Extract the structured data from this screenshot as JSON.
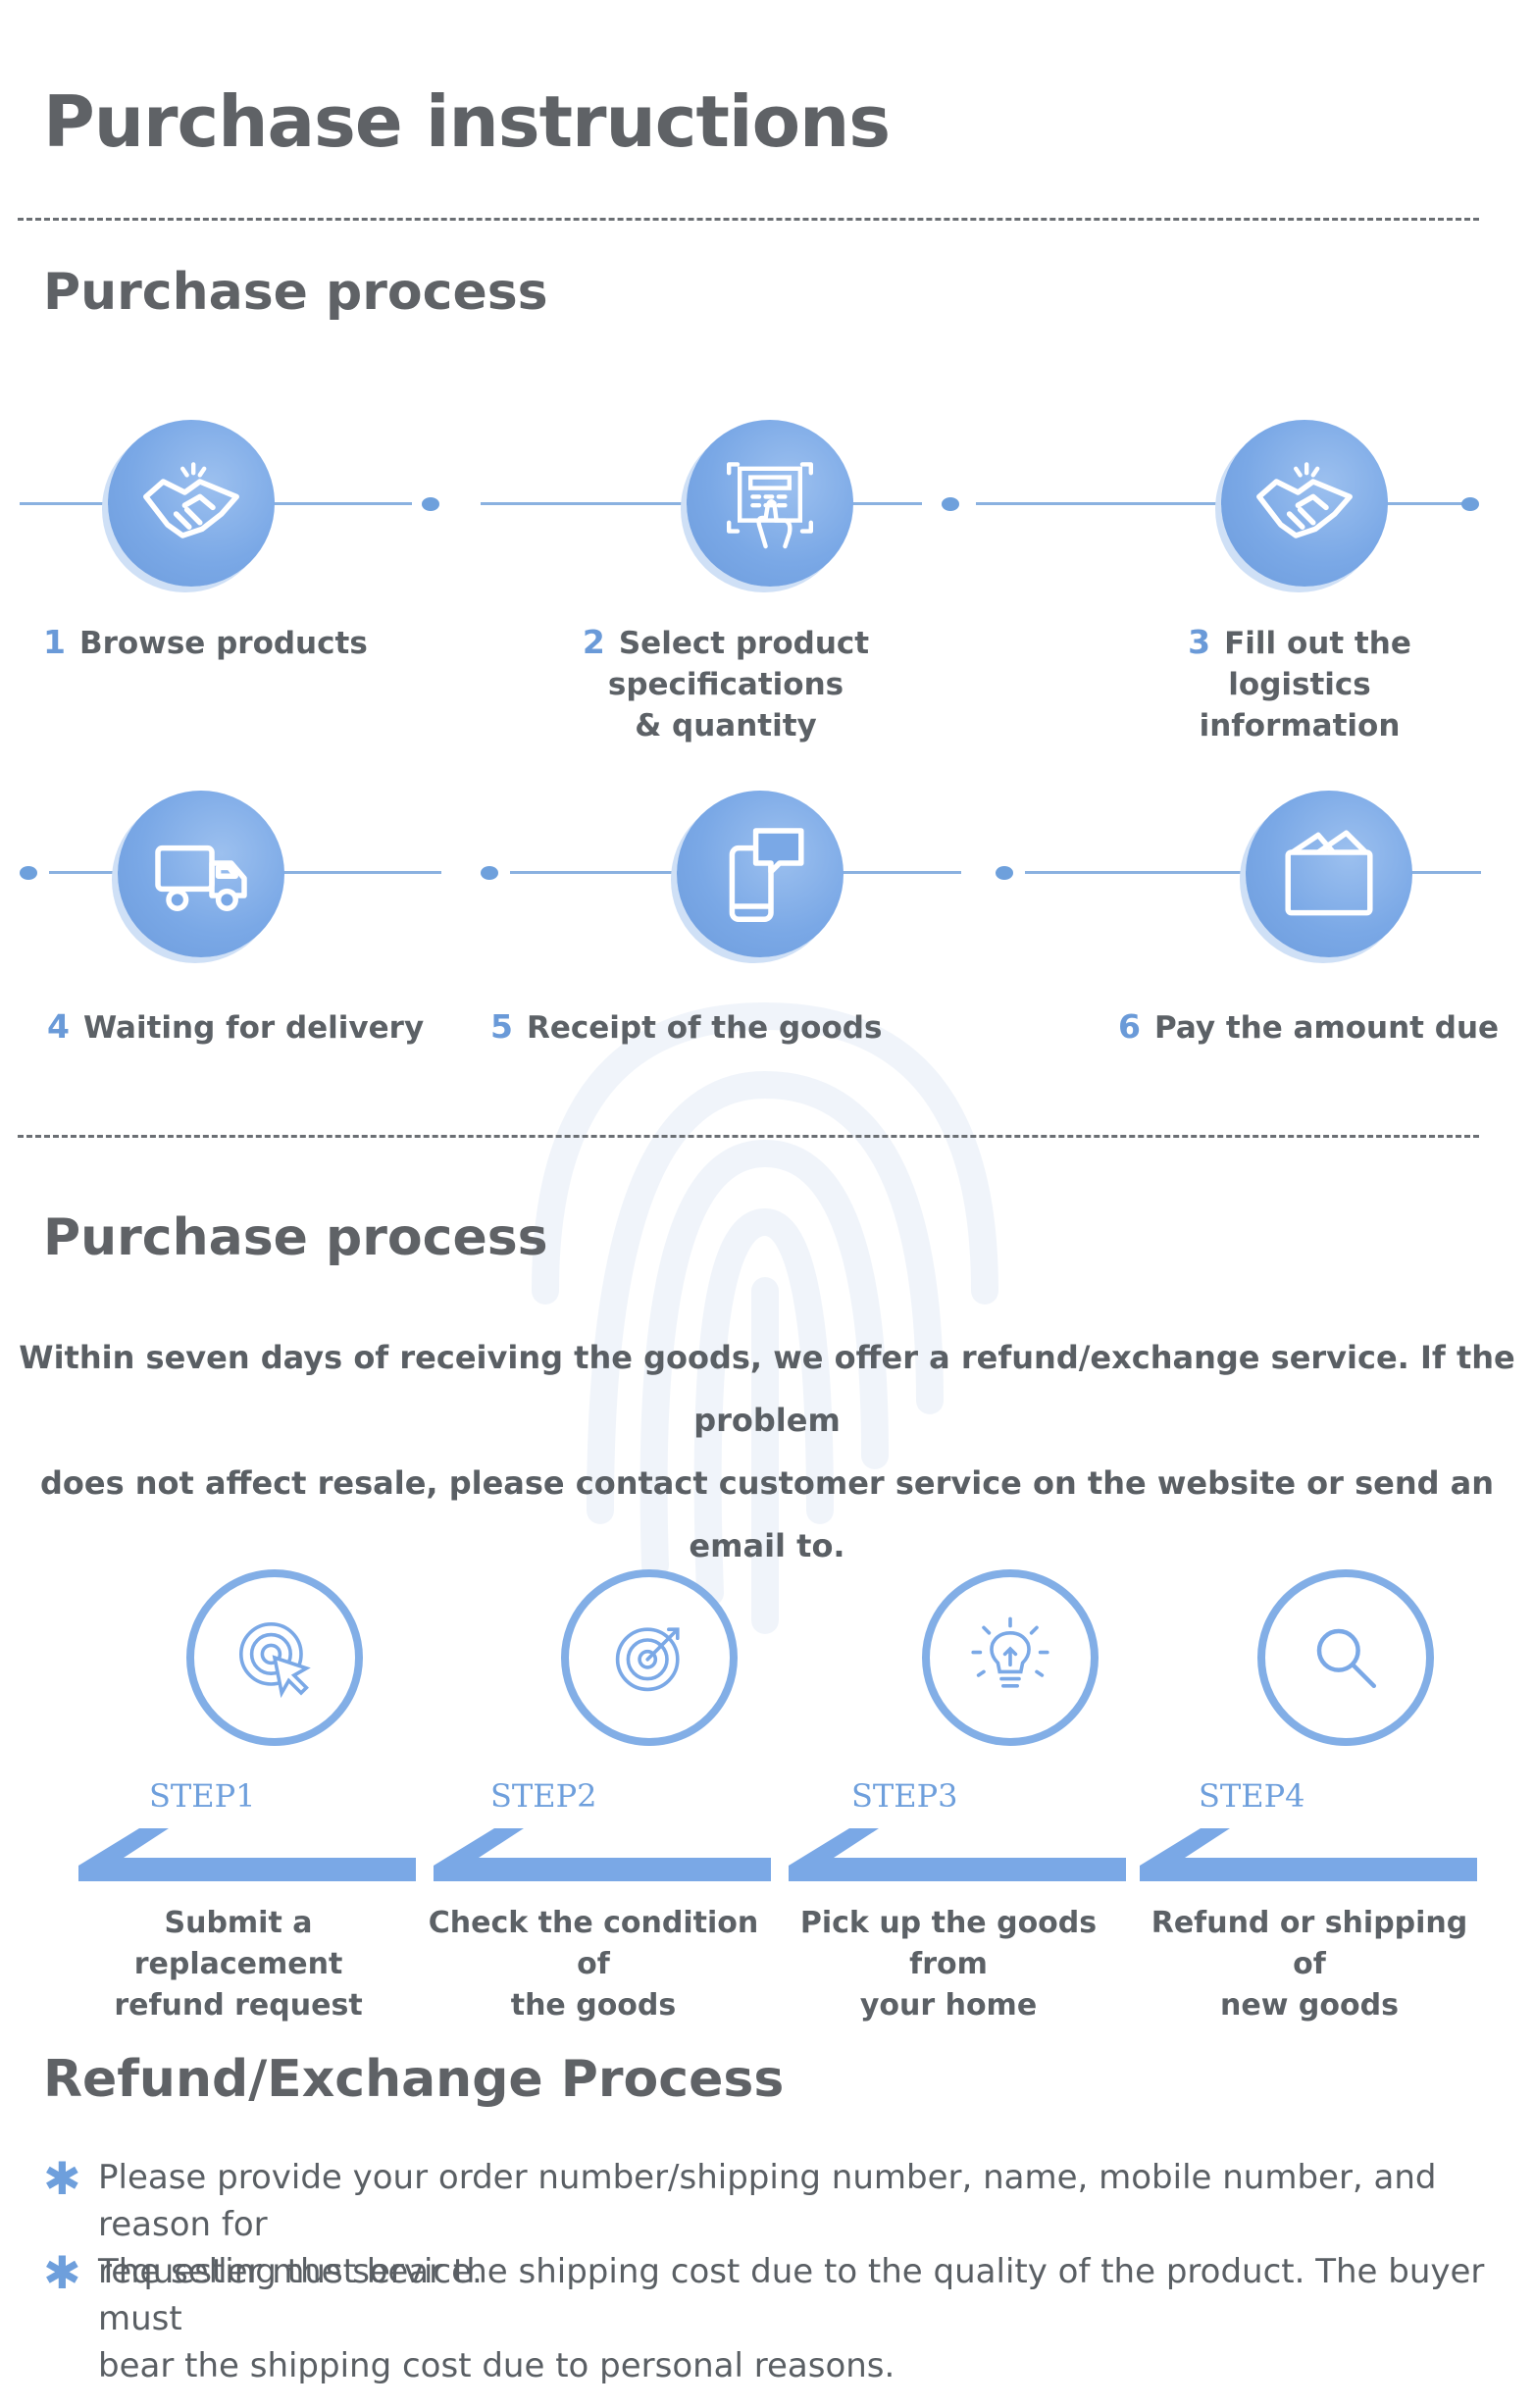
{
  "title": "Purchase instructions",
  "section1": {
    "heading": "Purchase process",
    "steps": [
      {
        "num": "1",
        "label": "Browse products",
        "icon": "handshake-icon"
      },
      {
        "num": "2",
        "label": "Select product specifications",
        "label2": "& quantity",
        "icon": "touch-screen-icon"
      },
      {
        "num": "3",
        "label": "Fill out the logistics",
        "label2": "information",
        "icon": "handshake-icon"
      },
      {
        "num": "4",
        "label": "Waiting for delivery",
        "icon": "truck-icon"
      },
      {
        "num": "5",
        "label": "Receipt of the goods",
        "icon": "phone-chat-icon"
      },
      {
        "num": "6",
        "label": "Pay the amount due",
        "icon": "wallet-icon"
      }
    ]
  },
  "section2": {
    "heading": "Purchase process",
    "paragraph_line1": "Within seven days of receiving the goods, we offer a refund/exchange service. If the problem",
    "paragraph_line2": "does not affect resale, please contact customer service on the website or send an email to.",
    "steps": [
      {
        "cap": "STEP1",
        "line1": "Submit a replacement",
        "line2": "refund request",
        "icon": "target-cursor-icon"
      },
      {
        "cap": "STEP2",
        "line1": "Check the condition of",
        "line2": "the goods",
        "icon": "target-arrow-icon"
      },
      {
        "cap": "STEP3",
        "line1": "Pick up the goods from",
        "line2": "your home",
        "icon": "lightbulb-icon"
      },
      {
        "cap": "STEP4",
        "line1": "Refund or shipping of",
        "line2": "new goods",
        "icon": "magnifier-icon"
      }
    ]
  },
  "section3": {
    "heading": "Refund/Exchange Process",
    "bullets": [
      {
        "line1": "Please provide your order number/shipping number, name, mobile number, and reason for",
        "line2": "requesting the service."
      },
      {
        "line1": "The seller must bear the shipping cost due to the quality of the product. The buyer must",
        "line2": "bear the shipping cost due to personal reasons."
      }
    ],
    "bullet_glyph": "✱"
  },
  "colors": {
    "accent": "#7aa8e6",
    "text": "#5a5f64",
    "heading": "#5f6266"
  }
}
